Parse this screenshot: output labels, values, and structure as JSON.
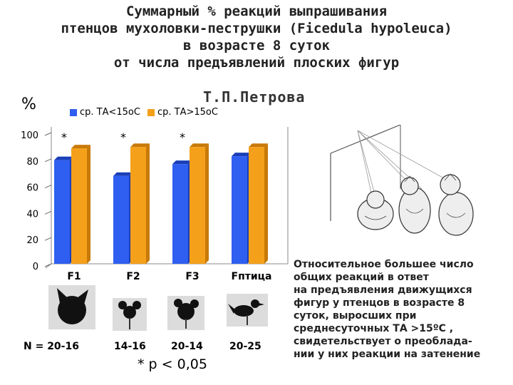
{
  "title_lines": [
    "Суммарный % реакций выпрашивания",
    "птенцов мухоловки-пеструшки (Ficedula hypoleuca)",
    "в возрасте 8 суток",
    "от числа предъявлений плоских фигур"
  ],
  "author": "Т.П.Петрова",
  "y_unit": "%",
  "chart_data": {
    "type": "bar",
    "categories": [
      "F1",
      "F2",
      "F3",
      "Fптица"
    ],
    "series": [
      {
        "name": "ср. ТА<15оС",
        "color": "#2f5ff0",
        "values": [
          79,
          67,
          76,
          82
        ]
      },
      {
        "name": "ср. ТА>15оС",
        "color": "#f5a01a",
        "values": [
          88,
          89,
          89,
          89
        ]
      }
    ],
    "significance_marks": [
      "*",
      "*",
      "*",
      ""
    ],
    "y_ticks": [
      0,
      20,
      40,
      60,
      80,
      100
    ],
    "ylim": [
      0,
      100
    ],
    "legend_position": "top",
    "grid": false
  },
  "sample_sizes": [
    "N  =  20-16",
    "14-16",
    "20-14",
    "20-25"
  ],
  "stimuli": [
    "cat-head-silhouette",
    "mouse-head-silhouette",
    "mouse-head-small-silhouette",
    "bird-silhouette"
  ],
  "significance_note": "* p < 0,05",
  "note_lines": [
    "Относительное большее число",
    "общих реакций в ответ",
    "на предъявления движущихся",
    "фигур у птенцов в возрасте 8",
    "суток, выросших при",
    "среднесуточных ТА >15ºС ,",
    "свидетельствует о преоблада-",
    "нии у них реакции на затенение"
  ]
}
